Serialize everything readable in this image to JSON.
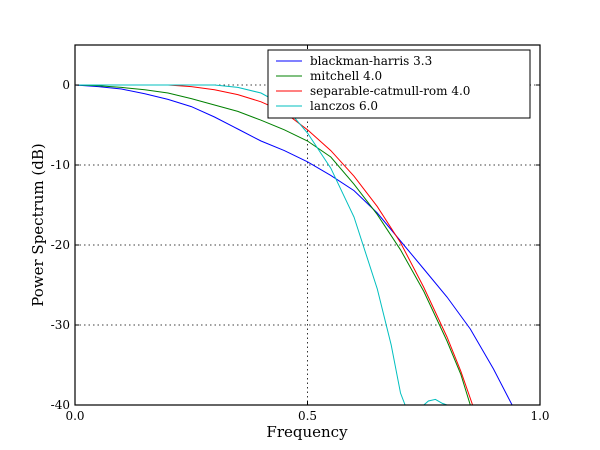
{
  "chart_data": {
    "type": "line",
    "xlabel": "Frequency",
    "ylabel": "Power Spectrum (dB)",
    "xlim": [
      0.0,
      1.0
    ],
    "ylim": [
      -40,
      5
    ],
    "xticks": [
      0.0,
      0.5,
      1.0
    ],
    "xtick_labels": [
      "0.0",
      "0.5",
      "1.0"
    ],
    "yticks": [
      0,
      -10,
      -20,
      -30,
      -40
    ],
    "ytick_labels": [
      "0",
      "-10",
      "-20",
      "-30",
      "-40"
    ],
    "grid": "dotted",
    "legend_position": "top-right",
    "series": [
      {
        "name": "blackman-harris 3.3",
        "color": "#0000ff",
        "x": [
          0.0,
          0.05,
          0.1,
          0.15,
          0.2,
          0.25,
          0.3,
          0.35,
          0.4,
          0.45,
          0.5,
          0.55,
          0.6,
          0.65,
          0.7,
          0.75,
          0.8,
          0.85,
          0.9,
          0.94
        ],
        "y": [
          0.0,
          -0.2,
          -0.5,
          -1.1,
          -1.8,
          -2.7,
          -4.0,
          -5.5,
          -7.0,
          -8.2,
          -9.6,
          -11.3,
          -13.2,
          -16.0,
          -19.5,
          -23.0,
          -26.5,
          -30.5,
          -35.5,
          -40.0
        ]
      },
      {
        "name": "mitchell 4.0",
        "color": "#008000",
        "x": [
          0.0,
          0.05,
          0.1,
          0.15,
          0.2,
          0.25,
          0.3,
          0.35,
          0.4,
          0.45,
          0.5,
          0.55,
          0.6,
          0.65,
          0.7,
          0.75,
          0.8,
          0.83,
          0.85
        ],
        "y": [
          0.0,
          -0.1,
          -0.3,
          -0.6,
          -1.0,
          -1.7,
          -2.5,
          -3.3,
          -4.4,
          -5.6,
          -7.0,
          -9.0,
          -12.4,
          -16.2,
          -20.6,
          -25.8,
          -32.0,
          -36.2,
          -40.0
        ]
      },
      {
        "name": "separable-catmull-rom 4.0",
        "color": "#ff0000",
        "x": [
          0.0,
          0.05,
          0.1,
          0.15,
          0.2,
          0.25,
          0.3,
          0.35,
          0.4,
          0.45,
          0.5,
          0.55,
          0.6,
          0.65,
          0.7,
          0.75,
          0.8,
          0.83,
          0.855
        ],
        "y": [
          0.0,
          0.0,
          0.0,
          0.0,
          0.0,
          -0.2,
          -0.6,
          -1.2,
          -2.1,
          -3.4,
          -5.6,
          -8.2,
          -11.4,
          -15.2,
          -19.7,
          -25.3,
          -31.5,
          -35.8,
          -40.0
        ]
      },
      {
        "name": "lanczos 6.0",
        "color": "#00bfbf",
        "x": [
          0.0,
          0.05,
          0.1,
          0.15,
          0.2,
          0.25,
          0.3,
          0.35,
          0.4,
          0.45,
          0.5,
          0.55,
          0.6,
          0.65,
          0.68,
          0.7,
          0.71,
          0.75,
          0.76,
          0.775,
          0.79,
          0.8
        ],
        "y": [
          0.0,
          0.0,
          0.0,
          0.0,
          0.0,
          0.0,
          0.0,
          -0.3,
          -1.0,
          -2.6,
          -6.0,
          -10.4,
          -16.5,
          -25.5,
          -32.5,
          -38.5,
          -40.0,
          -40.0,
          -39.5,
          -39.3,
          -39.8,
          -40.0
        ]
      }
    ]
  }
}
